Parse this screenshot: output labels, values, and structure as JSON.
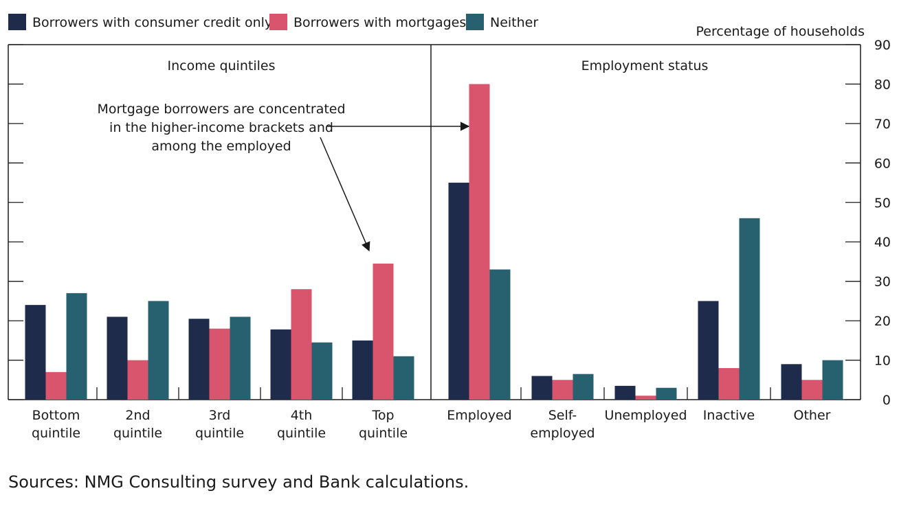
{
  "chart_data": {
    "type": "bar",
    "ylabel": "Percentage of households",
    "ylim": [
      0,
      90
    ],
    "yticks": [
      0,
      10,
      20,
      30,
      40,
      50,
      60,
      70,
      80,
      90
    ],
    "legend_position": "top-left",
    "grid": false,
    "series": [
      {
        "name": "Borrowers with consumer credit only",
        "color": "#1e2b4a"
      },
      {
        "name": "Borrowers with mortgages",
        "color": "#d9556e"
      },
      {
        "name": "Neither",
        "color": "#27606e"
      }
    ],
    "panels": [
      {
        "title": "Income quintiles",
        "categories": [
          [
            "Bottom",
            "quintile"
          ],
          [
            "2nd",
            "quintile"
          ],
          [
            "3rd",
            "quintile"
          ],
          [
            "4th",
            "quintile"
          ],
          [
            "Top",
            "quintile"
          ]
        ],
        "values": [
          [
            24,
            7,
            27
          ],
          [
            21,
            10,
            25
          ],
          [
            20.5,
            18,
            21
          ],
          [
            17.8,
            28,
            14.5
          ],
          [
            15,
            34.5,
            11
          ]
        ]
      },
      {
        "title": "Employment status",
        "categories": [
          [
            "Employed"
          ],
          [
            "Self-",
            "employed"
          ],
          [
            "Unemployed"
          ],
          [
            "Inactive"
          ],
          [
            "Other"
          ]
        ],
        "values": [
          [
            55,
            80,
            33
          ],
          [
            6,
            5,
            6.5
          ],
          [
            3.5,
            1,
            3
          ],
          [
            25,
            8,
            46
          ],
          [
            9,
            5,
            10
          ]
        ]
      }
    ],
    "annotation": {
      "lines": [
        "Mortgage borrowers are concentrated",
        "in the higher-income brackets and",
        "among the employed"
      ]
    }
  },
  "footer": {
    "sources": "Sources: NMG Consulting survey and Bank calculations."
  }
}
